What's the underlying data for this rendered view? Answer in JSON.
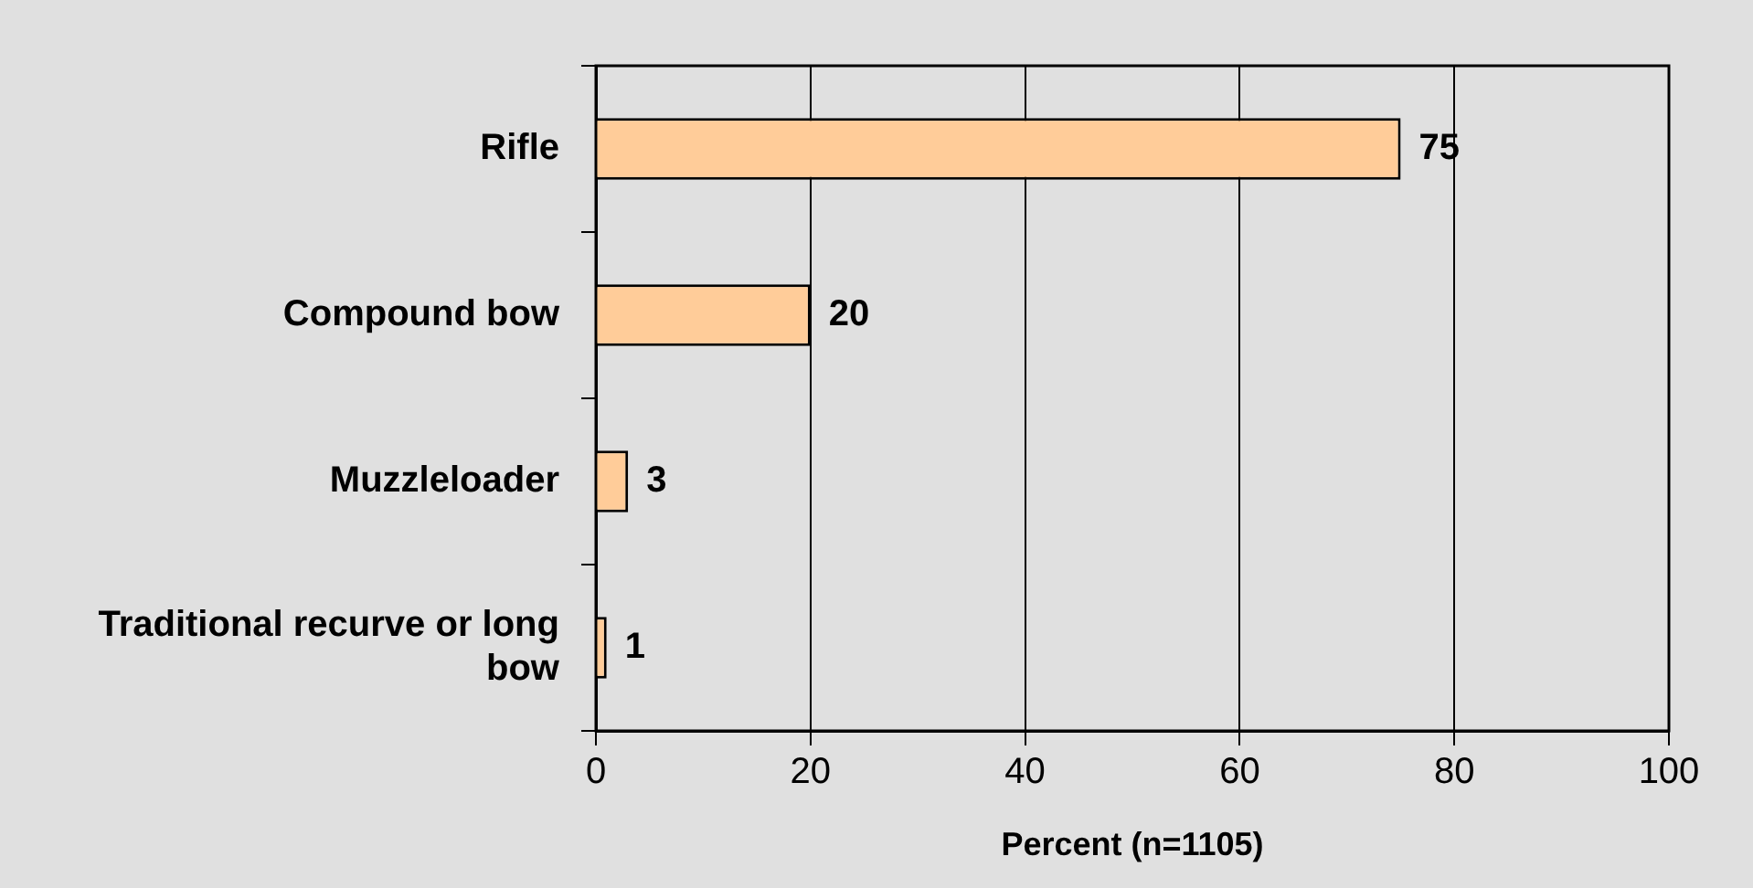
{
  "chart_data": {
    "type": "bar",
    "orientation": "horizontal",
    "xlabel": "Percent (n=1105)",
    "categories": [
      "Rifle",
      "Compound bow",
      "Muzzleloader",
      "Traditional recurve or long bow"
    ],
    "values": [
      75,
      20,
      3,
      1
    ],
    "color": "#ffcc99",
    "xlim": [
      0,
      100
    ],
    "xticks": [
      0,
      20,
      40,
      60,
      80,
      100
    ],
    "grid": "x",
    "data_labels": true,
    "legend": false
  }
}
